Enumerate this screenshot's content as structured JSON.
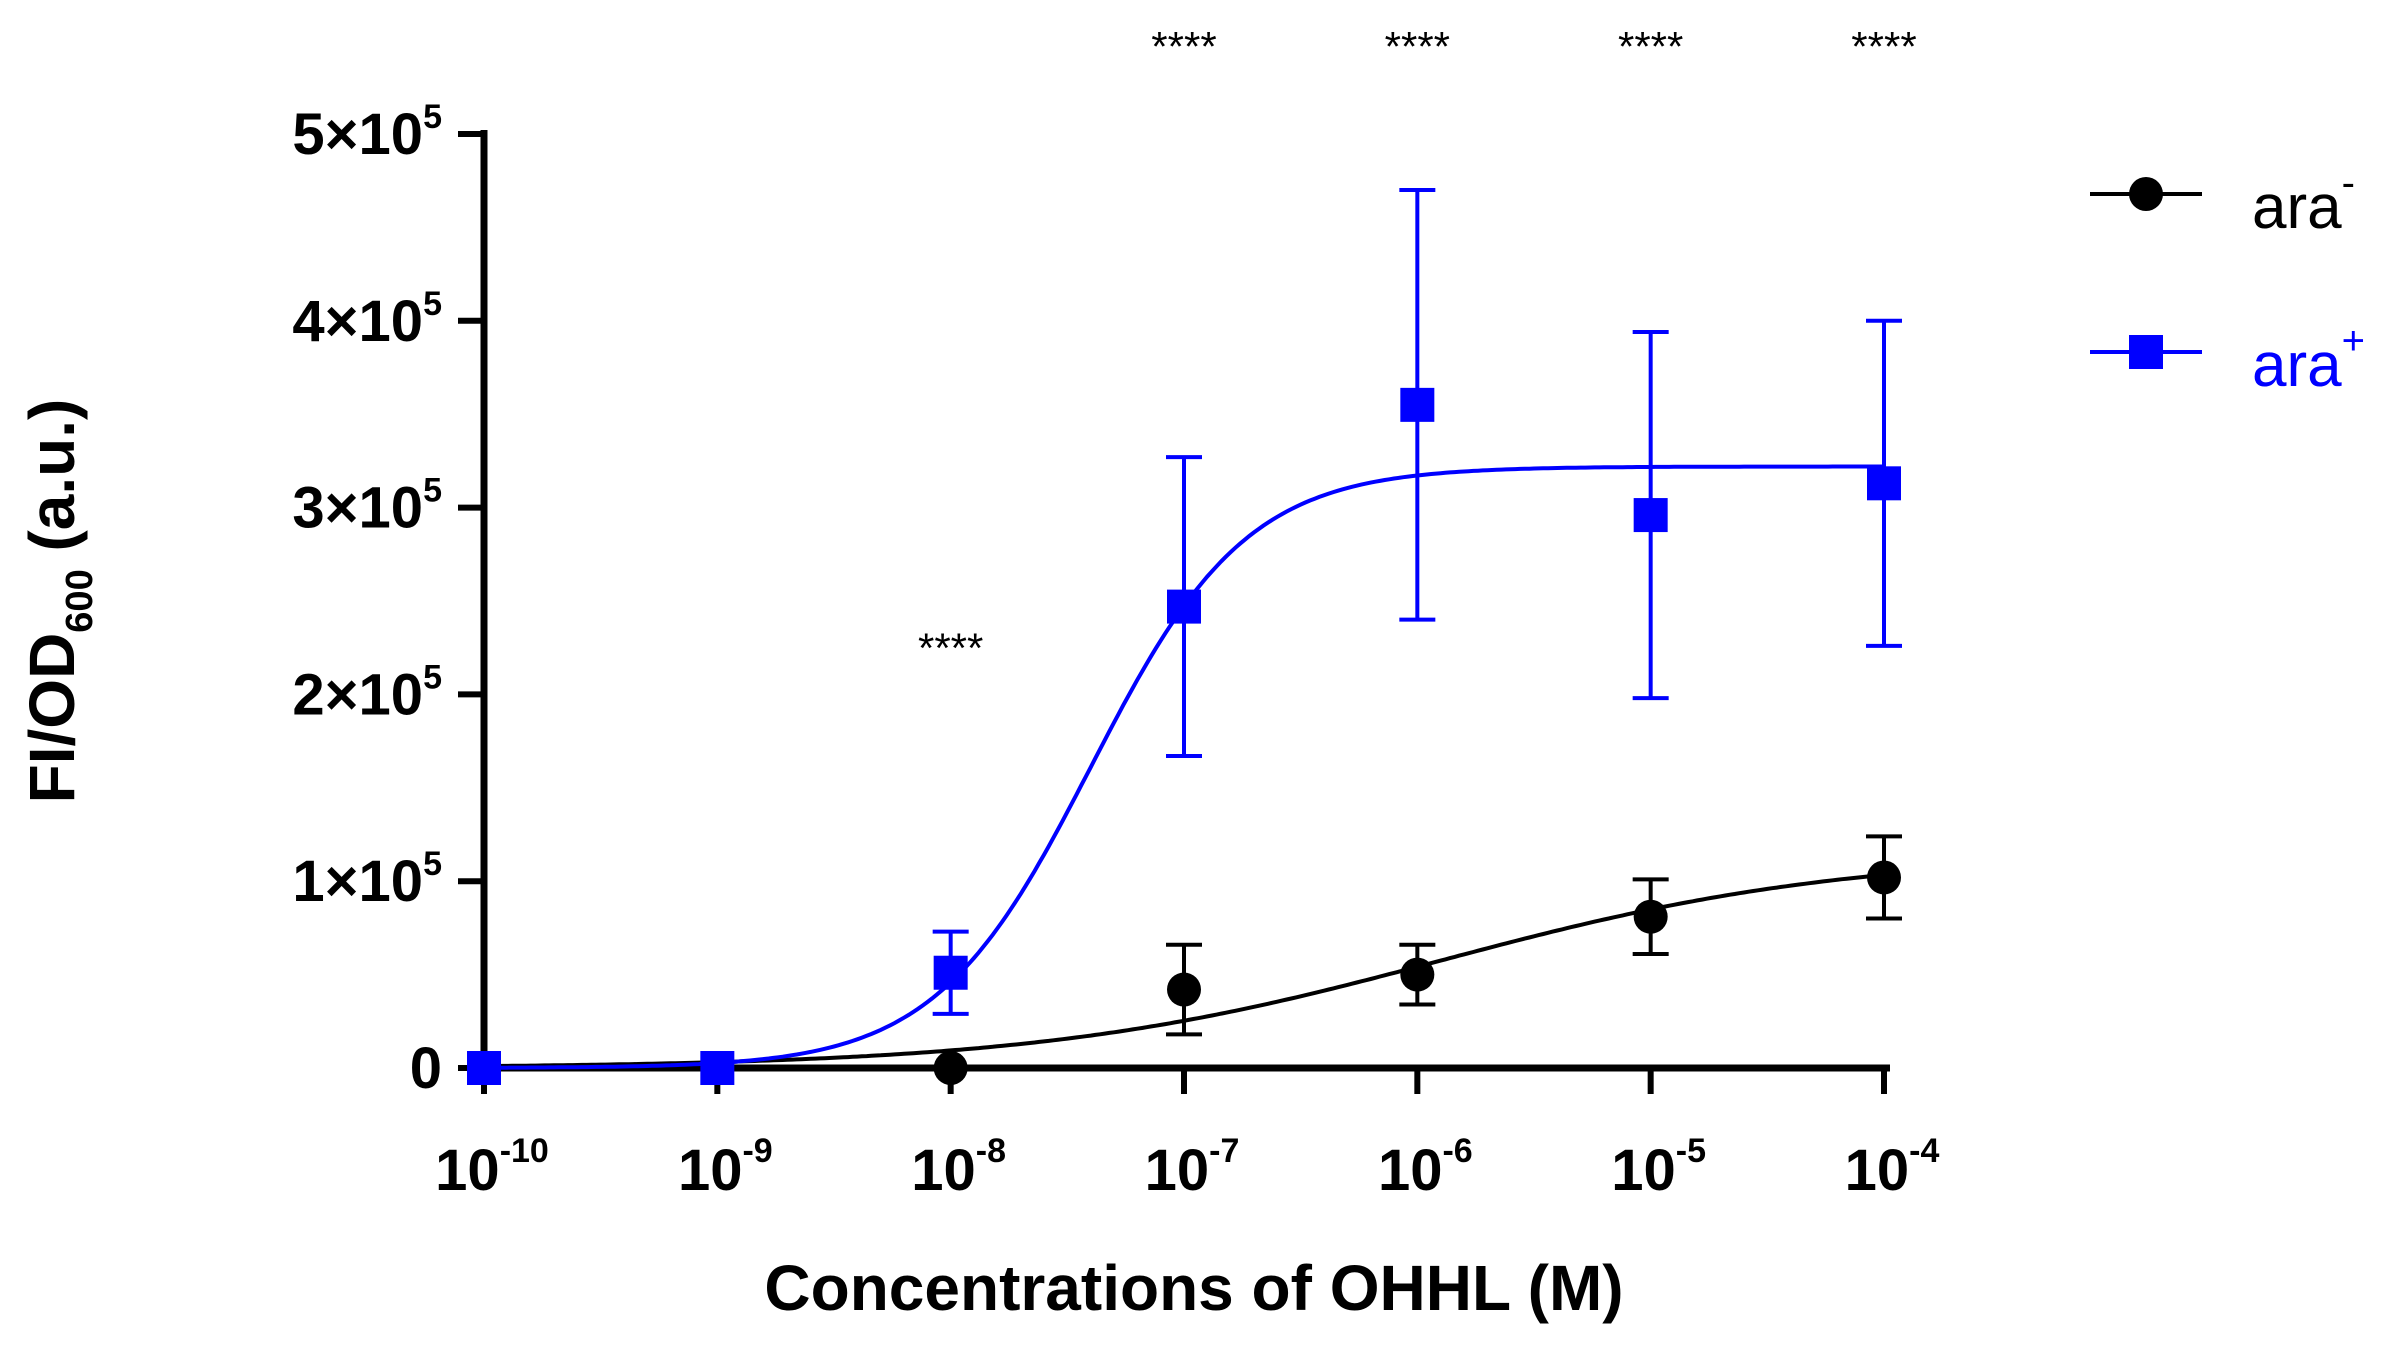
{
  "chart_data": {
    "type": "scatter",
    "xscale": "log",
    "xlim_exp": [
      -10,
      -4
    ],
    "ylim": [
      0,
      500000
    ],
    "xlabel": "Concentrations of OHHL (M)",
    "ylabel_main": "FI/OD",
    "ylabel_sub": "600",
    "ylabel_suffix": " (a.u.)",
    "x_ticks": [
      {
        "base": "10",
        "exp": "-10",
        "value": -10
      },
      {
        "base": "10",
        "exp": "-9",
        "value": -9
      },
      {
        "base": "10",
        "exp": "-8",
        "value": -8
      },
      {
        "base": "10",
        "exp": "-7",
        "value": -7
      },
      {
        "base": "10",
        "exp": "-6",
        "value": -6
      },
      {
        "base": "10",
        "exp": "-5",
        "value": -5
      },
      {
        "base": "10",
        "exp": "-4",
        "value": -4
      }
    ],
    "y_ticks": [
      {
        "base": "0",
        "exp": "",
        "value": 0
      },
      {
        "base": "1×10",
        "exp": "5",
        "value": 100000
      },
      {
        "base": "2×10",
        "exp": "5",
        "value": 200000
      },
      {
        "base": "3×10",
        "exp": "5",
        "value": 300000
      },
      {
        "base": "4×10",
        "exp": "5",
        "value": 400000
      },
      {
        "base": "5×10",
        "exp": "5",
        "value": 500000
      }
    ],
    "series": [
      {
        "name": "ara",
        "sup": "-",
        "color": "#000000",
        "marker": "circle",
        "x": [
          -10,
          -9,
          -8,
          -7,
          -6,
          -5,
          -4
        ],
        "y": [
          0,
          0,
          0,
          42000,
          50000,
          81000,
          102000
        ],
        "err": [
          0,
          0,
          0,
          24000,
          16000,
          20000,
          22000
        ],
        "fit": {
          "bottom": 0,
          "top": 115000,
          "log_ec50": -5.9,
          "hill": 0.5
        }
      },
      {
        "name": "ara",
        "sup": "+",
        "color": "#0000ff",
        "marker": "square",
        "x": [
          -10,
          -9,
          -8,
          -7,
          -6,
          -5,
          -4
        ],
        "y": [
          0,
          0,
          51000,
          247000,
          355000,
          296000,
          313000
        ],
        "err": [
          0,
          0,
          22000,
          80000,
          115000,
          98000,
          87000
        ],
        "fit": {
          "bottom": 0,
          "top": 322000,
          "log_ec50": -7.4,
          "hill": 1.3
        }
      }
    ],
    "significance": [
      {
        "x": -8,
        "y": 225000,
        "label": "****"
      },
      {
        "x": -7,
        "y": 547000,
        "label": "****"
      },
      {
        "x": -6,
        "y": 547000,
        "label": "****"
      },
      {
        "x": -5,
        "y": 547000,
        "label": "****"
      },
      {
        "x": -4,
        "y": 547000,
        "label": "****"
      }
    ],
    "legend_position": "top-right"
  }
}
